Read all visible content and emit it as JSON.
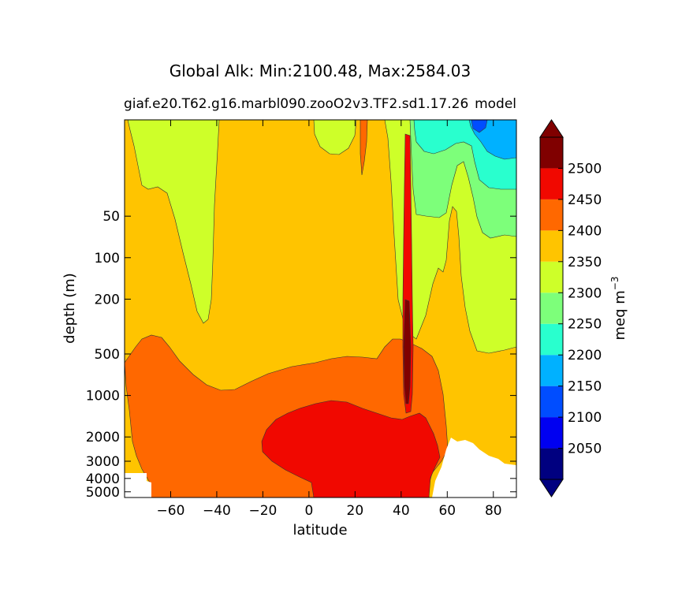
{
  "chart_data": {
    "type": "heatmap",
    "title": "Global Alk: Min:2100.48, Max:2584.03",
    "subtitle_left": "giaf.e20.T62.g16.marbl090.zooO2v3.TF2.sd1.17.26",
    "subtitle_right": "model",
    "xlabel": "latitude",
    "ylabel": "depth (m)",
    "xlim": [
      -80,
      90
    ],
    "ylim": [
      5500,
      10
    ],
    "yscale": "log",
    "xticks": [
      -60,
      -40,
      -20,
      0,
      20,
      40,
      60,
      80
    ],
    "xtick_labels": [
      "−60",
      "−40",
      "−20",
      "0",
      "20",
      "40",
      "60",
      "80"
    ],
    "yticks": [
      50,
      100,
      200,
      500,
      1000,
      2000,
      3000,
      4000,
      5000
    ],
    "ytick_labels": [
      "50",
      "100",
      "200",
      "500",
      "1000",
      "2000",
      "3000",
      "4000",
      "5000"
    ],
    "colorbar": {
      "label": "meq m",
      "label_sup": "−3",
      "levels": [
        2000,
        2050,
        2100,
        2150,
        2200,
        2250,
        2300,
        2350,
        2400,
        2450,
        2500,
        2550
      ],
      "tick_values": [
        2050,
        2100,
        2150,
        2200,
        2250,
        2300,
        2350,
        2400,
        2450,
        2500
      ],
      "tick_labels": [
        "2050",
        "2100",
        "2150",
        "2200",
        "2250",
        "2300",
        "2350",
        "2400",
        "2450",
        "2500"
      ],
      "colors": [
        "#000080",
        "#0000f1",
        "#004dff",
        "#00b1ff",
        "#29ffce",
        "#7dff7a",
        "#ceff29",
        "#ffc400",
        "#ff6800",
        "#f10800",
        "#800000"
      ],
      "extend": "both",
      "under_color": "#000080",
      "over_color": "#800000"
    },
    "regions": [
      {
        "level": "2300-2350",
        "approx_extent": "Southern Ocean upper 500 m, 78S-48S"
      },
      {
        "level": "2350-2400",
        "approx_extent": "upper and intermediate waters 10-1500 m, 80S-55N"
      },
      {
        "level": "2400-2450",
        "approx_extent": "deep waters below ~1000 m, 78S-58N"
      },
      {
        "level": "2450-2500",
        "approx_extent": "deep Pacific core 2000-5500 m, 18S-55N"
      },
      {
        "level": "2500-2550+",
        "approx_extent": "narrow column near 43N, 200-2000 m"
      },
      {
        "level": "2150-2300",
        "approx_extent": "Arctic upper 200 m, 58N-90N"
      }
    ]
  }
}
